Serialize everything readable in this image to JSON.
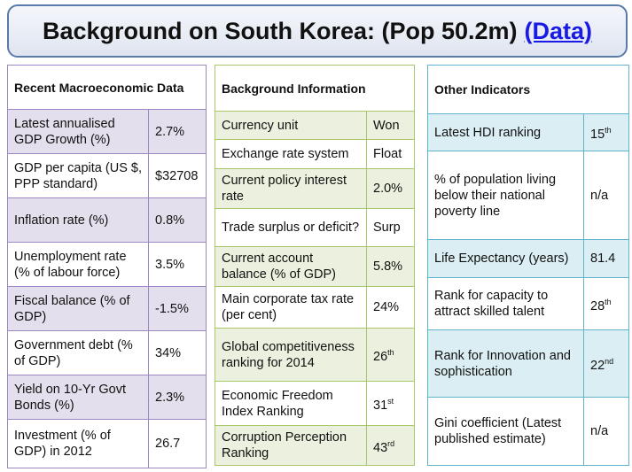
{
  "title": {
    "text": "Background on South Korea: (Pop 50.2m)",
    "link": "(Data)"
  },
  "macro": {
    "heading": "Recent Macroeconomic Data",
    "rows": [
      {
        "label": "Latest annualised GDP Growth (%)",
        "value": "2.7%"
      },
      {
        "label": "GDP per capita (US $, PPP standard)",
        "value": "$32708"
      },
      {
        "label": "Inflation rate (%)",
        "value": "0.8%"
      },
      {
        "label": "Unemployment rate (% of labour force)",
        "value": "3.5%"
      },
      {
        "label": "Fiscal balance (% of GDP)",
        "value": "-1.5%"
      },
      {
        "label": "Government debt (% of GDP)",
        "value": "34%"
      },
      {
        "label": "Yield on 10-Yr Govt Bonds (%)",
        "value": "2.3%"
      },
      {
        "label": "Investment (% of GDP) in 2012",
        "value": "26.7"
      }
    ]
  },
  "background": {
    "heading": "Background Information",
    "rows": [
      {
        "label": "Currency unit",
        "value": "Won"
      },
      {
        "label": "Exchange rate system",
        "value": "Float"
      },
      {
        "label": "Current policy interest rate",
        "value": "2.0%"
      },
      {
        "label": "Trade surplus or deficit?",
        "value": "Surp"
      },
      {
        "label": "Current account balance (% of GDP)",
        "value": "5.8%"
      },
      {
        "label": "Main corporate tax rate (per cent)",
        "value": "24%"
      },
      {
        "label": "Global competitiveness ranking for 2014",
        "value": "26",
        "sup": "th"
      },
      {
        "label": "Economic Freedom Index Ranking",
        "value": "31",
        "sup": "st"
      },
      {
        "label": "Corruption Perception Ranking",
        "value": "43",
        "sup": "rd"
      }
    ]
  },
  "other": {
    "heading": "Other Indicators",
    "rows": [
      {
        "label": "Latest HDI ranking",
        "value": "15",
        "sup": "th"
      },
      {
        "label": "% of population living below their national poverty line",
        "value": "n/a"
      },
      {
        "label": "Life Expectancy (years)",
        "value": "81.4"
      },
      {
        "label": "Rank for capacity to attract skilled talent",
        "value": "28",
        "sup": "th"
      },
      {
        "label": "Rank for Innovation and sophistication",
        "value": "22",
        "sup": "nd"
      },
      {
        "label": "Gini coefficient (Latest published estimate)",
        "value": "n/a"
      }
    ]
  }
}
